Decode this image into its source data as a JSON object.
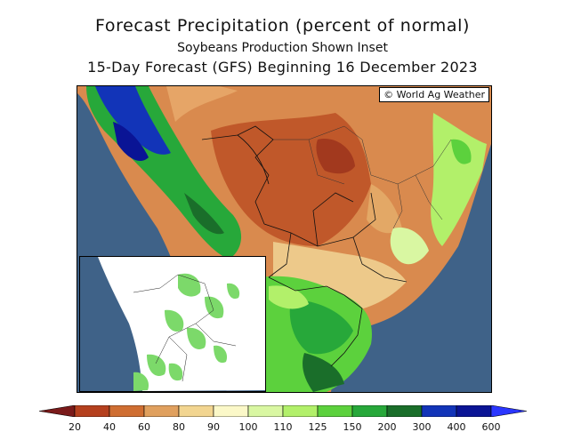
{
  "header": {
    "title": "Forecast Precipitation (percent of normal)",
    "subtitle": "Soybeans Production Shown Inset",
    "period": "15-Day Forecast (GFS) Beginning 16 December 2023"
  },
  "map": {
    "credit": "© World Ag Weather",
    "ocean_color": "#3f6288",
    "inset_land_color": "#ffffff",
    "inset_production_color": "#7cd96a"
  },
  "legend": {
    "tick_labels": [
      "20",
      "40",
      "60",
      "80",
      "90",
      "100",
      "110",
      "125",
      "150",
      "200",
      "300",
      "400",
      "600"
    ],
    "colors": [
      "#7a1a1a",
      "#b5401e",
      "#cf6e32",
      "#e0a05e",
      "#f2d590",
      "#fbf8c8",
      "#d9f7a2",
      "#b2f06a",
      "#5cd13d",
      "#27a83a",
      "#1a6e2a",
      "#1234b8",
      "#0a1495",
      "#2a36ff"
    ]
  }
}
